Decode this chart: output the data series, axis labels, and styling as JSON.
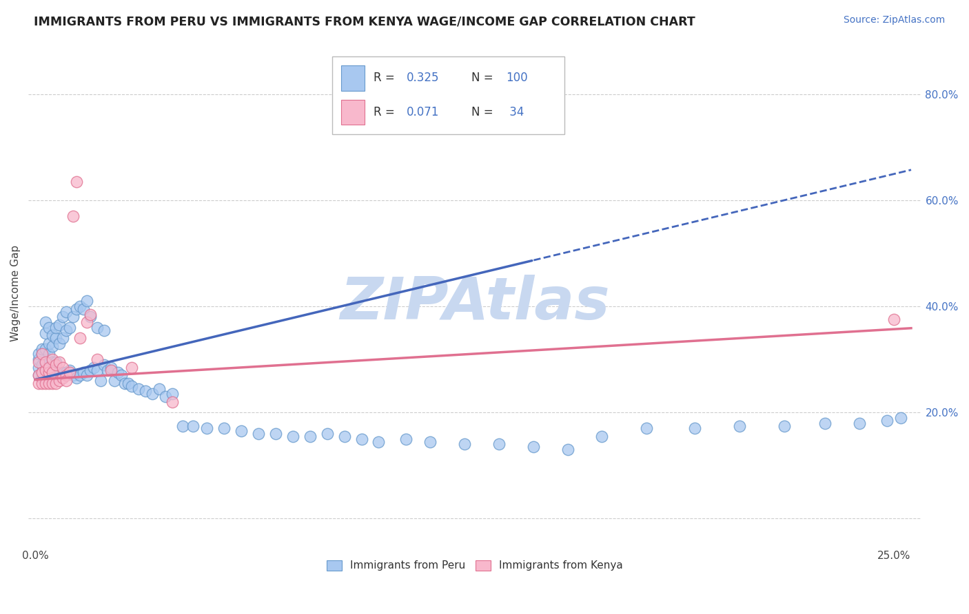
{
  "title": "IMMIGRANTS FROM PERU VS IMMIGRANTS FROM KENYA WAGE/INCOME GAP CORRELATION CHART",
  "source": "Source: ZipAtlas.com",
  "ylabel": "Wage/Income Gap",
  "right_yticks": [
    0.2,
    0.4,
    0.6,
    0.8
  ],
  "right_yticklabels": [
    "20.0%",
    "40.0%",
    "60.0%",
    "80.0%"
  ],
  "peru_color": "#A8C8F0",
  "peru_edge": "#6699CC",
  "kenya_color": "#F8B8CC",
  "kenya_edge": "#E07090",
  "peru_line_color": "#4466BB",
  "kenya_line_color": "#E07090",
  "peru_R": 0.325,
  "peru_N": 100,
  "kenya_R": 0.071,
  "kenya_N": 34,
  "watermark": "ZIPAtlas",
  "watermark_color": "#C8D8F0",
  "legend_label_peru": "Immigrants from Peru",
  "legend_label_kenya": "Immigrants from Kenya",
  "xlim": [
    -0.002,
    0.258
  ],
  "ylim": [
    -0.05,
    0.9
  ],
  "peru_line_intercept": 0.262,
  "peru_line_slope": 1.55,
  "peru_line_dashed_start": 0.145,
  "kenya_line_intercept": 0.262,
  "kenya_line_slope": 0.38,
  "peru_scatter_x": [
    0.001,
    0.001,
    0.001,
    0.001,
    0.002,
    0.002,
    0.002,
    0.002,
    0.002,
    0.003,
    0.003,
    0.003,
    0.003,
    0.003,
    0.003,
    0.004,
    0.004,
    0.004,
    0.004,
    0.004,
    0.005,
    0.005,
    0.005,
    0.005,
    0.005,
    0.006,
    0.006,
    0.006,
    0.006,
    0.007,
    0.007,
    0.007,
    0.008,
    0.008,
    0.008,
    0.009,
    0.009,
    0.009,
    0.01,
    0.01,
    0.011,
    0.011,
    0.012,
    0.012,
    0.013,
    0.013,
    0.014,
    0.014,
    0.015,
    0.015,
    0.016,
    0.016,
    0.017,
    0.018,
    0.018,
    0.019,
    0.02,
    0.02,
    0.021,
    0.022,
    0.023,
    0.024,
    0.025,
    0.026,
    0.027,
    0.028,
    0.03,
    0.032,
    0.034,
    0.036,
    0.038,
    0.04,
    0.043,
    0.046,
    0.05,
    0.055,
    0.06,
    0.065,
    0.07,
    0.075,
    0.08,
    0.085,
    0.09,
    0.095,
    0.1,
    0.108,
    0.115,
    0.125,
    0.135,
    0.145,
    0.155,
    0.165,
    0.178,
    0.192,
    0.205,
    0.218,
    0.23,
    0.24,
    0.248,
    0.252
  ],
  "peru_scatter_y": [
    0.27,
    0.285,
    0.3,
    0.31,
    0.265,
    0.275,
    0.29,
    0.31,
    0.32,
    0.27,
    0.28,
    0.295,
    0.32,
    0.35,
    0.37,
    0.265,
    0.28,
    0.31,
    0.33,
    0.36,
    0.265,
    0.275,
    0.295,
    0.325,
    0.345,
    0.27,
    0.295,
    0.34,
    0.36,
    0.275,
    0.33,
    0.365,
    0.275,
    0.34,
    0.38,
    0.275,
    0.355,
    0.39,
    0.28,
    0.36,
    0.27,
    0.38,
    0.265,
    0.395,
    0.27,
    0.4,
    0.275,
    0.395,
    0.27,
    0.41,
    0.28,
    0.38,
    0.285,
    0.28,
    0.36,
    0.26,
    0.29,
    0.355,
    0.28,
    0.285,
    0.26,
    0.275,
    0.27,
    0.255,
    0.255,
    0.25,
    0.245,
    0.24,
    0.235,
    0.245,
    0.23,
    0.235,
    0.175,
    0.175,
    0.17,
    0.17,
    0.165,
    0.16,
    0.16,
    0.155,
    0.155,
    0.16,
    0.155,
    0.15,
    0.145,
    0.15,
    0.145,
    0.14,
    0.14,
    0.135,
    0.13,
    0.155,
    0.17,
    0.17,
    0.175,
    0.175,
    0.18,
    0.18,
    0.185,
    0.19
  ],
  "kenya_scatter_x": [
    0.001,
    0.001,
    0.001,
    0.002,
    0.002,
    0.002,
    0.003,
    0.003,
    0.003,
    0.004,
    0.004,
    0.004,
    0.005,
    0.005,
    0.005,
    0.006,
    0.006,
    0.007,
    0.007,
    0.008,
    0.008,
    0.009,
    0.009,
    0.01,
    0.011,
    0.012,
    0.013,
    0.015,
    0.016,
    0.018,
    0.022,
    0.028,
    0.04,
    0.25
  ],
  "kenya_scatter_y": [
    0.255,
    0.27,
    0.295,
    0.255,
    0.275,
    0.31,
    0.255,
    0.28,
    0.295,
    0.255,
    0.275,
    0.285,
    0.255,
    0.275,
    0.3,
    0.255,
    0.29,
    0.26,
    0.295,
    0.265,
    0.285,
    0.27,
    0.26,
    0.275,
    0.57,
    0.635,
    0.34,
    0.37,
    0.385,
    0.3,
    0.28,
    0.285,
    0.22,
    0.375
  ]
}
